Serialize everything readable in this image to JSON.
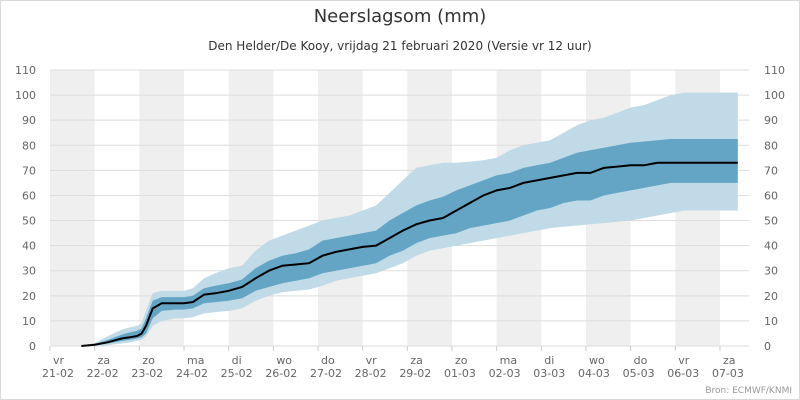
{
  "chart_data": {
    "type": "area",
    "title": "Neerslagsom (mm)",
    "subtitle": "Den Helder/De Kooy, vrijdag 21 februari 2020 (Versie vr 12 uur)",
    "source": "Bron: ECMWF/KNMI",
    "ylim": [
      0,
      110
    ],
    "yticks": [
      0,
      10,
      20,
      30,
      40,
      50,
      60,
      70,
      80,
      90,
      100,
      110
    ],
    "grid": true,
    "day_labels": [
      {
        "day": "vr",
        "date": "21-02"
      },
      {
        "day": "za",
        "date": "22-02"
      },
      {
        "day": "zo",
        "date": "23-02"
      },
      {
        "day": "ma",
        "date": "24-02"
      },
      {
        "day": "di",
        "date": "25-02"
      },
      {
        "day": "wo",
        "date": "26-02"
      },
      {
        "day": "do",
        "date": "27-02"
      },
      {
        "day": "vr",
        "date": "28-02"
      },
      {
        "day": "za",
        "date": "29-02"
      },
      {
        "day": "zo",
        "date": "01-03"
      },
      {
        "day": "ma",
        "date": "02-03"
      },
      {
        "day": "di",
        "date": "03-03"
      },
      {
        "day": "wo",
        "date": "04-03"
      },
      {
        "day": "do",
        "date": "05-03"
      },
      {
        "day": "vr",
        "date": "06-03"
      },
      {
        "day": "za",
        "date": "07-03"
      }
    ],
    "x_days": [
      0.7,
      1.0,
      1.3,
      1.6,
      1.8,
      1.95,
      2.05,
      2.15,
      2.3,
      2.5,
      2.8,
      3.0,
      3.2,
      3.45,
      3.7,
      4.0,
      4.3,
      4.6,
      4.9,
      5.2,
      5.5,
      5.8,
      6.1,
      6.4,
      6.7,
      7.0,
      7.3,
      7.6,
      7.9,
      8.2,
      8.5,
      8.8,
      9.1,
      9.4,
      9.7,
      10.0,
      10.3,
      10.6,
      10.9,
      11.2,
      11.5,
      11.8,
      12.1,
      12.4,
      12.7,
      13.0,
      13.3,
      13.6,
      13.9,
      14.2,
      14.5,
      14.8,
      15.1,
      15.4
    ],
    "series": [
      {
        "name": "",
        "role": "median",
        "color": "#000000",
        "values": [
          0,
          0.5,
          1.5,
          3,
          3.5,
          4,
          5,
          8,
          15,
          17,
          17,
          17,
          17.5,
          20.5,
          21,
          22,
          23.5,
          27,
          30,
          32,
          32.5,
          33,
          36,
          37.5,
          38.5,
          39.5,
          40,
          43,
          46,
          48.5,
          50,
          51,
          54,
          57,
          60,
          62,
          63,
          65,
          66,
          67,
          68,
          69,
          69,
          71,
          71.5,
          72,
          72,
          73,
          73,
          73,
          73,
          73,
          73,
          73
        ]
      },
      {
        "name": "",
        "role": "p25",
        "color": "#5a9ec2",
        "values": [
          0,
          0.2,
          1,
          2,
          2.5,
          3,
          3.5,
          5,
          11,
          14,
          14.5,
          14.5,
          15,
          17,
          17.5,
          18,
          19,
          22,
          23.5,
          25,
          26,
          27,
          29,
          30,
          31,
          32,
          33,
          36,
          38,
          41,
          43,
          44,
          45,
          47,
          48,
          49,
          50,
          52,
          54,
          55,
          57,
          58,
          58,
          60,
          61,
          62,
          63,
          64,
          65,
          65,
          65,
          65,
          65,
          65
        ]
      },
      {
        "name": "",
        "role": "p75",
        "color": "#5a9ec2",
        "values": [
          0,
          0.8,
          2.5,
          4.5,
          5.5,
          6,
          7,
          11,
          18,
          19.5,
          19.5,
          19.5,
          20,
          23,
          24,
          25,
          26.5,
          31,
          34,
          36,
          37,
          38.5,
          42,
          43,
          44,
          45,
          46,
          50,
          53,
          56,
          58,
          59.5,
          62,
          64,
          66,
          68,
          69,
          71,
          72,
          73,
          75,
          77,
          78,
          79,
          80,
          81,
          81.5,
          82,
          82.5,
          82.5,
          82.5,
          82.5,
          82.5,
          82.5
        ]
      },
      {
        "name": "",
        "role": "p10",
        "color": "#a9cce0",
        "values": [
          0,
          0,
          0.3,
          1,
          1.5,
          2,
          2.5,
          4,
          8,
          10,
          11,
          11,
          11.5,
          13,
          13.5,
          14,
          15,
          18,
          20,
          21.5,
          22,
          22.5,
          24,
          26,
          27,
          28,
          29,
          31,
          33,
          36,
          38,
          39,
          40,
          41,
          42,
          43,
          44,
          45,
          46,
          47,
          47.5,
          48,
          48.5,
          49,
          49.5,
          50,
          51,
          52,
          53,
          54,
          54,
          54,
          54,
          54
        ]
      },
      {
        "name": "",
        "role": "p90",
        "color": "#a9cce0",
        "values": [
          0,
          1.2,
          4,
          6.5,
          7.5,
          8,
          9,
          14,
          21,
          22,
          22,
          22,
          23,
          27,
          29,
          31,
          32,
          38,
          42,
          44,
          46,
          48,
          50,
          51,
          52,
          54,
          56,
          61,
          66,
          71,
          72,
          73,
          73,
          73.5,
          74,
          75,
          78,
          80,
          81,
          82,
          85,
          88,
          90,
          91,
          93,
          95,
          96,
          98,
          100,
          101,
          101,
          101,
          101,
          101
        ]
      }
    ],
    "colors": {
      "outer_band": "#bdd8e6",
      "inner_band": "#5a9ec2",
      "median": "#000000",
      "weekend_shade": "#efefef",
      "grid": "#dddddd",
      "axis_text": "#666666"
    }
  }
}
